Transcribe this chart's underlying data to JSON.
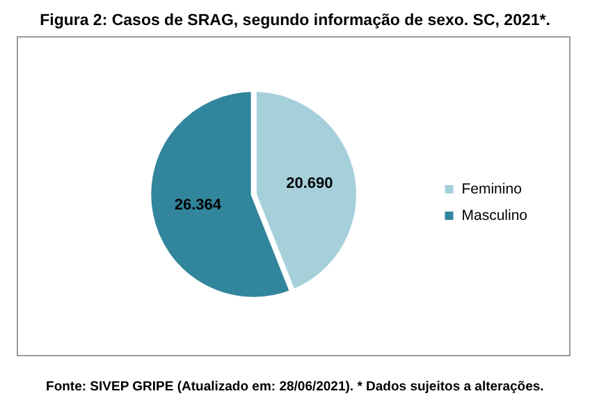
{
  "chart_data": {
    "type": "pie",
    "title": "Figura 2: Casos de SRAG, segundo informação de sexo. SC, 2021*.",
    "categories": [
      "Feminino",
      "Masculino"
    ],
    "values": [
      20690,
      26364
    ],
    "value_labels": [
      "20.690",
      "26.364"
    ],
    "colors": [
      "#a5d0da",
      "#31859c"
    ],
    "legend": "right",
    "annotations": [
      "Fonte: SIVEP GRIPE (Atualizado em: 28/06/2021). * Dados sujeitos a alterações."
    ]
  }
}
